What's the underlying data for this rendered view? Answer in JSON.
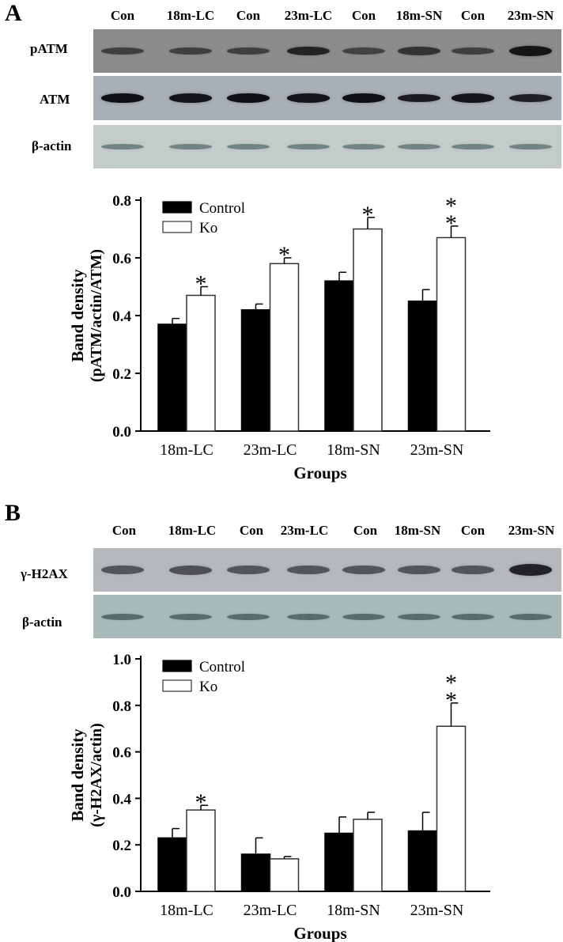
{
  "panel_a": {
    "letter": "A",
    "lane_labels": [
      "Con",
      "18m-LC",
      "Con",
      "23m-LC",
      "Con",
      "18m-SN",
      "Con",
      "23m-SN"
    ],
    "blots": [
      {
        "label": "pATM",
        "band_intensity": [
          0.45,
          0.45,
          0.45,
          0.8,
          0.4,
          0.6,
          0.45,
          1.0
        ]
      },
      {
        "label": "ATM",
        "band_intensity": [
          0.95,
          0.9,
          0.95,
          0.9,
          0.95,
          0.85,
          0.9,
          0.8
        ]
      },
      {
        "label": "β-actin",
        "band_intensity": [
          0.45,
          0.45,
          0.45,
          0.45,
          0.45,
          0.45,
          0.45,
          0.45
        ]
      }
    ]
  },
  "panel_b": {
    "letter": "B",
    "lane_labels": [
      "Con",
      "18m-LC",
      "Con",
      "23m-LC",
      "Con",
      "18m-SN",
      "Con",
      "23m-SN"
    ],
    "blots": [
      {
        "label": "γ-H2AX",
        "band_intensity": [
          0.45,
          0.5,
          0.45,
          0.45,
          0.45,
          0.45,
          0.45,
          0.95
        ]
      },
      {
        "label": "β-actin",
        "band_intensity": [
          0.5,
          0.5,
          0.5,
          0.5,
          0.5,
          0.5,
          0.5,
          0.5
        ]
      }
    ]
  },
  "chart_data": [
    {
      "type": "bar",
      "categories": [
        "18m-LC",
        "23m-LC",
        "18m-SN",
        "23m-SN"
      ],
      "series": [
        {
          "name": "Control",
          "color": "#000000",
          "values": [
            0.37,
            0.42,
            0.52,
            0.45
          ],
          "errors": [
            0.02,
            0.02,
            0.03,
            0.04
          ],
          "annotations": [
            "",
            "",
            "",
            ""
          ]
        },
        {
          "name": "Ko",
          "color": "#ffffff",
          "values": [
            0.47,
            0.58,
            0.7,
            0.67
          ],
          "errors": [
            0.03,
            0.02,
            0.04,
            0.04
          ],
          "annotations": [
            "*",
            "*",
            "*",
            "**"
          ]
        }
      ],
      "xlabel": "Groups",
      "ylabel": [
        "Band density",
        "(pATM/actin/ATM)"
      ],
      "ylim": [
        0,
        0.8
      ],
      "yticks": [
        "0.0",
        "0.2",
        "0.4",
        "0.6",
        "0.8"
      ],
      "legend_position": "top-left"
    },
    {
      "type": "bar",
      "categories": [
        "18m-LC",
        "23m-LC",
        "18m-SN",
        "23m-SN"
      ],
      "series": [
        {
          "name": "Control",
          "color": "#000000",
          "values": [
            0.23,
            0.16,
            0.25,
            0.26
          ],
          "errors": [
            0.04,
            0.07,
            0.07,
            0.08
          ],
          "annotations": [
            "",
            "",
            "",
            ""
          ]
        },
        {
          "name": "Ko",
          "color": "#ffffff",
          "values": [
            0.35,
            0.14,
            0.31,
            0.71
          ],
          "errors": [
            0.02,
            0.01,
            0.03,
            0.1
          ],
          "annotations": [
            "*",
            "",
            "",
            "**"
          ]
        }
      ],
      "xlabel": "Groups",
      "ylabel": [
        "Band density",
        "(γ-H2AX/actin)"
      ],
      "ylim": [
        0,
        1.0
      ],
      "yticks": [
        "0.0",
        "0.2",
        "0.4",
        "0.6",
        "0.8",
        "1.0"
      ],
      "legend_position": "top-left"
    }
  ]
}
